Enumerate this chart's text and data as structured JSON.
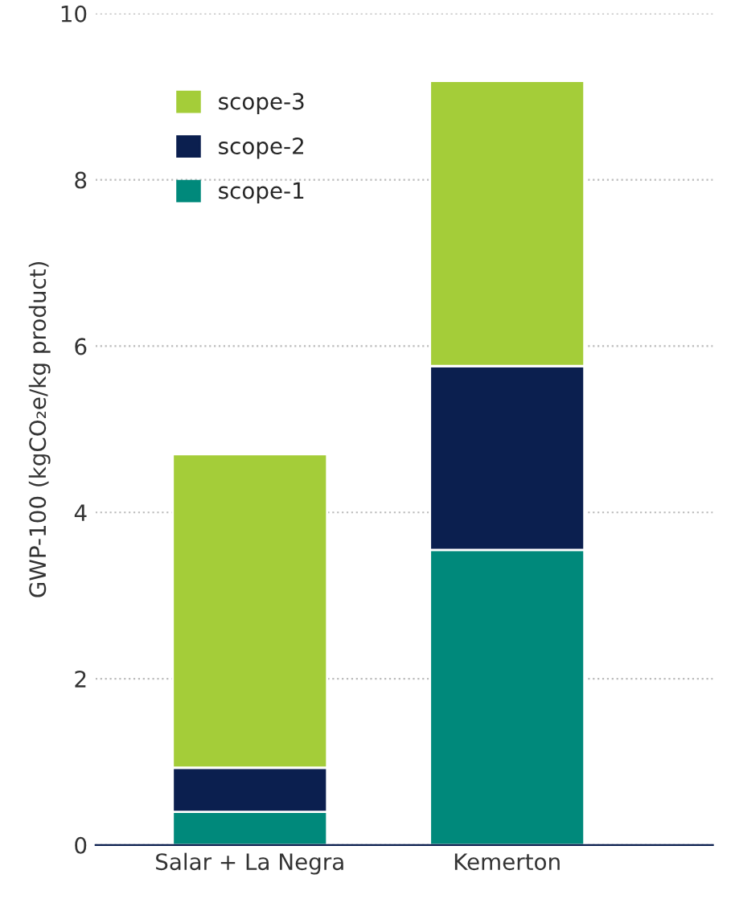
{
  "chart_data": {
    "type": "bar",
    "stacked": true,
    "ylabel": "GWP-100 (kgCO₂e/kg product)",
    "categories": [
      "Salar + La Negra",
      "Kemerton"
    ],
    "series": [
      {
        "name": "scope-1",
        "color": "#00897b",
        "values": [
          0.4,
          3.55
        ]
      },
      {
        "name": "scope-2",
        "color": "#0b1f4f",
        "values": [
          0.53,
          2.21
        ]
      },
      {
        "name": "scope-3",
        "color": "#a4cd39",
        "values": [
          3.77,
          3.43
        ]
      }
    ],
    "ylim": [
      0,
      10
    ],
    "yticks": [
      0,
      2,
      4,
      6,
      8,
      10
    ],
    "grid": "y",
    "legend": "top left"
  }
}
